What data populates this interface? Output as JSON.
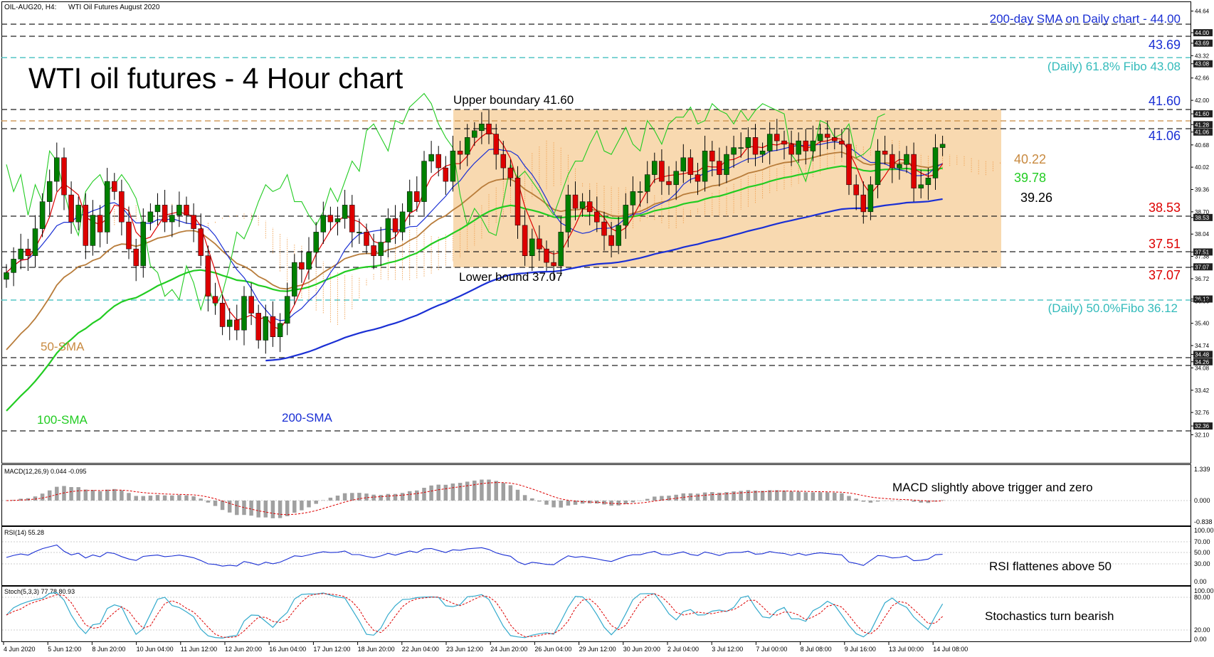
{
  "header": {
    "symbol": "OIL-AUG20, H4:",
    "instrument": "WTI Oil Futures August 2020"
  },
  "title": "WTI oil futures - 4 Hour chart",
  "colors": {
    "range_box": "#f8d9b0",
    "candle_up": "#008000",
    "candle_down": "#dd0000",
    "sma50": "#b87c3a",
    "sma100": "#22cc22",
    "sma200": "#1a2fd4",
    "tenkan": "#dd0000",
    "kijun": "#1a2fd4",
    "chikou": "#22cc22",
    "cloud": "#f0a050",
    "dashed_level": "#222222",
    "fibo": "#33bbbb",
    "annotation_blue": "#1a2fd4",
    "annotation_red": "#dd0000",
    "annotation_orange": "#c88a40",
    "annotation_green": "#22cc22",
    "macd_hist": "#a0a0a0",
    "macd_signal": "#dd0000",
    "rsi_line": "#1a2fd4",
    "stoch_main": "#33aacc",
    "stoch_signal": "#dd0000"
  },
  "annotations": {
    "sma200_daily": "200-day SMA on Daily chart - 44.00",
    "level_4369": "43.69",
    "fibo_618": "(Daily) 61.8% Fibo 43.08",
    "upper_boundary": "Upper boundary 41.60",
    "level_4160": "41.60",
    "level_4106": "41.06",
    "sma50_value": "40.22",
    "sma100_value": "39.78",
    "level_3926": "39.26",
    "level_3853": "38.53",
    "level_3751": "37.51",
    "level_3707": "37.07",
    "lower_bound": "Lower bound 37.07",
    "fibo_500": "(Daily) 50.0%Fibo 36.12",
    "label_50sma": "50-SMA",
    "label_100sma": "100-SMA",
    "label_200sma": "200-SMA",
    "macd_comment": "MACD slightly above trigger and zero",
    "rsi_comment": "RSI flattenes above 50",
    "stoch_comment": "Stochastics turn bearish"
  },
  "indicators": {
    "macd_header": "MACD(12,26,9) 0.044 -0.095",
    "rsi_header": "RSI(14) 55.28",
    "stoch_header": "Stoch(5,3,3) 77.78 80.93"
  },
  "price_axis": {
    "ticks": [
      "44.64",
      "44.00",
      "43.69",
      "43.32",
      "43.08",
      "42.66",
      "42.00",
      "41.60",
      "41.28",
      "41.06",
      "40.68",
      "40.02",
      "39.36",
      "38.70",
      "38.53",
      "38.04",
      "37.51",
      "37.38",
      "37.07",
      "36.72",
      "36.12",
      "36.06",
      "35.40",
      "34.74",
      "34.48",
      "34.26",
      "34.08",
      "33.42",
      "32.76",
      "32.36",
      "32.10"
    ],
    "highlighted": [
      "44.00",
      "43.69",
      "43.08",
      "41.60",
      "41.28",
      "41.06",
      "38.53",
      "37.51",
      "37.07",
      "36.12",
      "34.48",
      "34.26",
      "32.36"
    ]
  },
  "macd_axis": [
    "1.339",
    "0.000",
    "-0.838"
  ],
  "rsi_axis": [
    "100.00",
    "70.00",
    "50.00",
    "30.00",
    "0.00"
  ],
  "stoch_axis": [
    "100.00",
    "80.00",
    "20.00",
    "0.00"
  ],
  "chart_data": {
    "type": "candlestick",
    "timeframe": "H4",
    "ylim": [
      31.5,
      44.8
    ],
    "time_axis": [
      "4 Jun 2020",
      "5 Jun 12:00",
      "8 Jun 20:00",
      "10 Jun 04:00",
      "11 Jun 12:00",
      "12 Jun 20:00",
      "16 Jun 04:00",
      "17 Jun 12:00",
      "18 Jun 20:00",
      "22 Jun 04:00",
      "23 Jun 12:00",
      "24 Jun 20:00",
      "26 Jun 04:00",
      "29 Jun 12:00",
      "30 Jun 20:00",
      "2 Jul 04:00",
      "3 Jul 12:00",
      "7 Jul 00:00",
      "8 Jul 08:00",
      "9 Jul 16:00",
      "13 Jul 00:00",
      "14 Jul 08:00"
    ],
    "close": [
      36.9,
      37.3,
      37.6,
      37.4,
      38.2,
      39.0,
      39.6,
      40.3,
      39.2,
      38.4,
      38.9,
      37.7,
      38.6,
      38.1,
      39.6,
      39.3,
      38.4,
      37.6,
      37.1,
      38.4,
      38.7,
      38.9,
      38.4,
      38.6,
      38.9,
      38.6,
      38.2,
      37.4,
      36.2,
      36.0,
      35.3,
      35.5,
      35.2,
      36.2,
      35.7,
      34.9,
      35.6,
      35.0,
      35.4,
      36.2,
      37.2,
      37.0,
      37.5,
      38.1,
      38.6,
      38.4,
      38.5,
      38.9,
      38.1,
      38.1,
      37.7,
      37.4,
      37.8,
      38.5,
      38.1,
      38.7,
      39.3,
      39.0,
      40.2,
      40.4,
      40.0,
      39.6,
      40.5,
      40.4,
      40.9,
      41.1,
      41.3,
      41.0,
      40.4,
      40.0,
      39.7,
      38.3,
      37.4,
      37.9,
      37.6,
      37.2,
      37.1,
      38.1,
      39.2,
      38.8,
      39.0,
      38.7,
      38.4,
      38.0,
      37.7,
      38.3,
      38.9,
      39.3,
      39.3,
      39.8,
      40.2,
      39.6,
      39.5,
      39.9,
      40.3,
      39.8,
      39.6,
      40.5,
      40.2,
      39.8,
      40.4,
      40.6,
      40.6,
      40.9,
      40.4,
      40.5,
      41.0,
      40.8,
      40.7,
      40.4,
      40.8,
      40.5,
      40.8,
      41.0,
      40.9,
      40.8,
      40.7,
      39.5,
      39.2,
      38.7,
      39.5,
      40.5,
      40.4,
      40.0,
      40.1,
      40.4,
      39.4,
      39.5,
      39.7,
      40.6,
      40.7
    ]
  }
}
